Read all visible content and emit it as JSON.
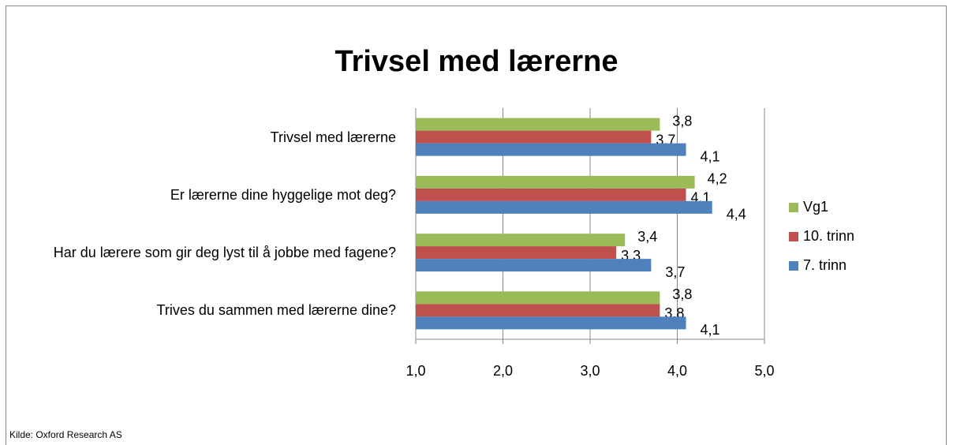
{
  "chart_data": {
    "type": "barh",
    "title": "Trivsel med lærerne",
    "categories": [
      "Trivsel med lærerne",
      "Er lærerne dine hyggelige mot deg?",
      "Har du lærere som gir deg lyst til å jobbe med fagene?",
      "Trives du sammen med lærerne dine?"
    ],
    "series": [
      {
        "name": "Vg1",
        "color": "#9bbb59",
        "values": [
          3.8,
          4.2,
          3.4,
          3.8
        ],
        "value_labels": [
          "3,8",
          "4,2",
          "3,4",
          "3,8"
        ]
      },
      {
        "name": "10. trinn",
        "color": "#c0504d",
        "values": [
          3.7,
          4.1,
          3.3,
          3.8
        ],
        "value_labels": [
          "3,7",
          "4,1",
          "3,3",
          "3,8"
        ]
      },
      {
        "name": "7. trinn",
        "color": "#4f81bd",
        "values": [
          4.1,
          4.4,
          3.7,
          4.1
        ],
        "value_labels": [
          "4,1",
          "4,4",
          "3,7",
          "4,1"
        ]
      }
    ],
    "xlim": [
      1,
      5
    ],
    "xticks": [
      {
        "value": 1,
        "label": "1,0"
      },
      {
        "value": 2,
        "label": "2,0"
      },
      {
        "value": 3,
        "label": "3,0"
      },
      {
        "value": 4,
        "label": "4,0"
      },
      {
        "value": 5,
        "label": "5,0"
      }
    ],
    "grid": true,
    "legend": "right",
    "source": "Kilde: Oxford Research AS"
  }
}
